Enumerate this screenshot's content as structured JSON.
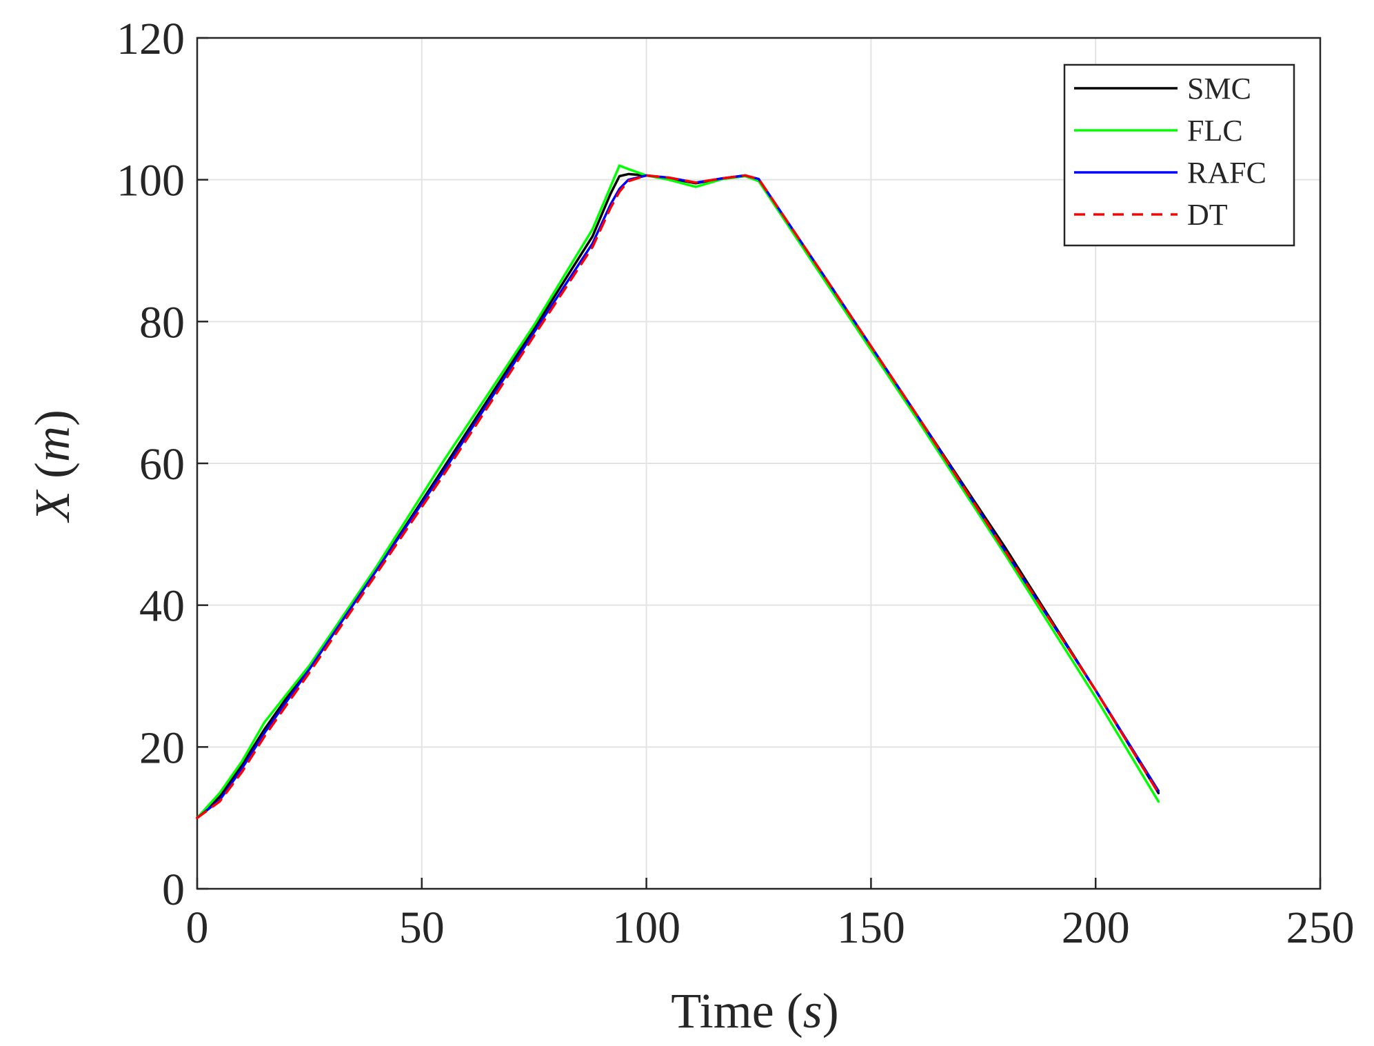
{
  "chart_data": {
    "type": "line",
    "xlabel": "Time",
    "xlabel_unit": "s",
    "ylabel": "X",
    "ylabel_unit": "m",
    "xlim": [
      0,
      250
    ],
    "ylim": [
      0,
      120
    ],
    "x_ticks": [
      0,
      50,
      100,
      150,
      200,
      250
    ],
    "y_ticks": [
      0,
      20,
      40,
      60,
      80,
      100,
      120
    ],
    "x_tick_labels": [
      "0",
      "50",
      "100",
      "150",
      "200",
      "250"
    ],
    "y_tick_labels": [
      "0",
      "20",
      "40",
      "60",
      "80",
      "100",
      "120"
    ],
    "grid": true,
    "legend_position": "top-right",
    "series": [
      {
        "name": "SMC",
        "color": "#000000",
        "dash": "solid",
        "x": [
          0,
          5,
          10,
          15,
          20,
          25,
          40,
          55,
          75,
          88,
          92,
          94,
          96,
          100,
          105,
          111,
          117,
          122,
          125,
          140,
          160,
          180,
          200,
          214
        ],
        "y": [
          10,
          13,
          17.5,
          22.5,
          27,
          31,
          45,
          59.5,
          79,
          92,
          98,
          100.5,
          100.8,
          100.6,
          100.2,
          99.5,
          100.2,
          100.6,
          100,
          86,
          67,
          48,
          28,
          13.5
        ]
      },
      {
        "name": "FLC",
        "color": "#00ff00",
        "dash": "solid",
        "x": [
          0,
          5,
          10,
          15,
          20,
          25,
          40,
          55,
          75,
          88,
          92,
          94,
          96,
          100,
          105,
          111,
          117,
          122,
          125,
          140,
          160,
          180,
          200,
          214
        ],
        "y": [
          10,
          13.5,
          18,
          23.5,
          27.5,
          31.5,
          45.5,
          60.5,
          79.5,
          93,
          99,
          102,
          101.5,
          100.6,
          100,
          99,
          100.1,
          100.5,
          99.8,
          85.5,
          66.5,
          47,
          27,
          12.3
        ]
      },
      {
        "name": "RAFC",
        "color": "#0000ff",
        "dash": "solid",
        "x": [
          0,
          5,
          10,
          15,
          20,
          25,
          40,
          55,
          75,
          88,
          92,
          94,
          96,
          100,
          105,
          111,
          117,
          122,
          125,
          140,
          160,
          180,
          200,
          214
        ],
        "y": [
          10,
          12.5,
          17,
          22,
          26.5,
          31,
          45,
          59,
          78.5,
          91,
          96.5,
          98.7,
          100,
          100.6,
          100.3,
          99.6,
          100.2,
          100.6,
          100.1,
          86,
          67,
          47.5,
          28,
          13.8
        ]
      },
      {
        "name": "DT",
        "color": "#ff0000",
        "dash": "dashed",
        "x": [
          0,
          5,
          10,
          15,
          20,
          25,
          40,
          55,
          75,
          88,
          92,
          94,
          96,
          100,
          105,
          111,
          117,
          122,
          125,
          140,
          160,
          180,
          200,
          214
        ],
        "y": [
          10,
          12.3,
          16.5,
          21.5,
          26,
          30.5,
          44.5,
          58.5,
          78,
          90.5,
          96,
          98.3,
          99.8,
          100.6,
          100.3,
          99.6,
          100.2,
          100.6,
          100.1,
          86,
          67,
          47.5,
          28,
          13.5
        ]
      }
    ]
  }
}
